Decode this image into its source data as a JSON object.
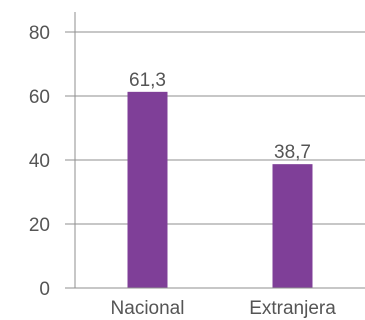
{
  "chart_data": {
    "type": "bar",
    "categories": [
      "Nacional",
      "Extranjera"
    ],
    "values": [
      61.3,
      38.7
    ],
    "value_labels": [
      "61,3",
      "38,7"
    ],
    "ylim": [
      0,
      80
    ],
    "yticks": [
      0,
      20,
      40,
      60,
      80
    ],
    "ytick_labels": [
      "0",
      "20",
      "40",
      "60",
      "80"
    ],
    "grid": true,
    "legend": "none",
    "bar_color": "#7f3f98"
  }
}
